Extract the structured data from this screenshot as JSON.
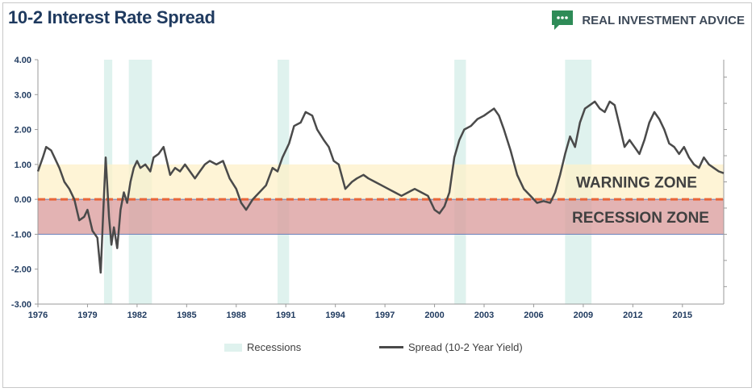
{
  "header": {
    "title": "10-2 Interest Rate Spread"
  },
  "brand": {
    "name": "REAL INVESTMENT ADVICE",
    "icon": "speech-bubble-icon",
    "color": "#2e8b57"
  },
  "zones": {
    "warning_label": "WARNING ZONE",
    "recession_label": "RECESSION ZONE",
    "warning_color": "#fdf0c8",
    "recession_color": "#d99a9a",
    "zero_line_color": "#e8663a"
  },
  "legend": {
    "recessions": "Recessions",
    "spread": "Spread (10-2 Year Yield)"
  },
  "chart_data": {
    "type": "line",
    "title": "10-2 Interest Rate Spread",
    "xlabel": "",
    "ylabel": "",
    "xlim": [
      1976,
      2017.5
    ],
    "ylim": [
      -3,
      4
    ],
    "y_ticks": [
      4,
      3,
      2,
      1,
      0,
      -1,
      -2,
      -3
    ],
    "y_tick_labels": [
      "4.00",
      "3.00",
      "2.00",
      "1.00",
      "0.00",
      "-1.00",
      "-2.00",
      "-3.00"
    ],
    "x_ticks": [
      1976,
      1979,
      1982,
      1985,
      1988,
      1991,
      1994,
      1997,
      2000,
      2003,
      2006,
      2009,
      2012,
      2015
    ],
    "x_tick_labels": [
      "1976",
      "1979",
      "1982",
      "1985",
      "1988",
      "1991",
      "1994",
      "1997",
      "2000",
      "2003",
      "2006",
      "2009",
      "2012",
      "2015"
    ],
    "bands": [
      {
        "name": "warning",
        "from": 0,
        "to": 1
      },
      {
        "name": "recession",
        "from": -1,
        "to": 0
      }
    ],
    "recessions": [
      [
        1980.0,
        1980.5
      ],
      [
        1981.5,
        1982.9
      ],
      [
        1990.5,
        1991.2
      ],
      [
        2001.2,
        2001.9
      ],
      [
        2007.9,
        2009.5
      ]
    ],
    "series": [
      {
        "name": "Spread (10-2 Year Yield)",
        "color": "#4a4a4a",
        "x": [
          1976.0,
          1976.3,
          1976.5,
          1976.8,
          1977.0,
          1977.3,
          1977.6,
          1977.9,
          1978.2,
          1978.5,
          1978.8,
          1979.0,
          1979.3,
          1979.6,
          1979.8,
          1979.95,
          1980.1,
          1980.3,
          1980.45,
          1980.6,
          1980.8,
          1981.0,
          1981.2,
          1981.4,
          1981.6,
          1981.8,
          1982.0,
          1982.2,
          1982.5,
          1982.8,
          1983.0,
          1983.3,
          1983.6,
          1984.0,
          1984.3,
          1984.6,
          1984.9,
          1985.2,
          1985.5,
          1985.8,
          1986.1,
          1986.4,
          1986.8,
          1987.2,
          1987.6,
          1988.0,
          1988.3,
          1988.6,
          1989.0,
          1989.4,
          1989.8,
          1990.2,
          1990.5,
          1990.8,
          1991.2,
          1991.5,
          1991.9,
          1992.2,
          1992.6,
          1992.9,
          1993.3,
          1993.6,
          1993.9,
          1994.2,
          1994.6,
          1995.0,
          1995.3,
          1995.7,
          1996.0,
          1996.4,
          1996.8,
          1997.2,
          1997.6,
          1998.0,
          1998.4,
          1998.8,
          1999.2,
          1999.6,
          2000.0,
          2000.3,
          2000.6,
          2000.9,
          2001.2,
          2001.5,
          2001.8,
          2002.2,
          2002.6,
          2003.0,
          2003.3,
          2003.6,
          2003.9,
          2004.2,
          2004.6,
          2005.0,
          2005.4,
          2005.8,
          2006.2,
          2006.6,
          2007.0,
          2007.3,
          2007.6,
          2007.9,
          2008.2,
          2008.5,
          2008.8,
          2009.1,
          2009.4,
          2009.7,
          2010.0,
          2010.3,
          2010.6,
          2010.9,
          2011.2,
          2011.5,
          2011.8,
          2012.1,
          2012.4,
          2012.7,
          2013.0,
          2013.3,
          2013.6,
          2013.9,
          2014.2,
          2014.5,
          2014.8,
          2015.1,
          2015.4,
          2015.7,
          2016.0,
          2016.3,
          2016.6,
          2016.9,
          2017.2,
          2017.5
        ],
        "values": [
          0.8,
          1.2,
          1.5,
          1.4,
          1.2,
          0.9,
          0.5,
          0.3,
          0.0,
          -0.6,
          -0.5,
          -0.3,
          -0.9,
          -1.1,
          -2.1,
          -0.4,
          1.2,
          -0.5,
          -1.3,
          -0.8,
          -1.4,
          -0.3,
          0.2,
          -0.1,
          0.5,
          0.9,
          1.1,
          0.9,
          1.0,
          0.8,
          1.2,
          1.3,
          1.5,
          0.7,
          0.9,
          0.8,
          1.0,
          0.8,
          0.6,
          0.8,
          1.0,
          1.1,
          1.0,
          1.1,
          0.6,
          0.3,
          -0.1,
          -0.3,
          0.0,
          0.2,
          0.4,
          0.9,
          0.8,
          1.2,
          1.6,
          2.1,
          2.2,
          2.5,
          2.4,
          2.0,
          1.7,
          1.5,
          1.1,
          1.0,
          0.3,
          0.5,
          0.6,
          0.7,
          0.6,
          0.5,
          0.4,
          0.3,
          0.2,
          0.1,
          0.2,
          0.3,
          0.2,
          0.1,
          -0.3,
          -0.4,
          -0.2,
          0.2,
          1.2,
          1.7,
          2.0,
          2.1,
          2.3,
          2.4,
          2.5,
          2.6,
          2.4,
          2.0,
          1.4,
          0.7,
          0.3,
          0.1,
          -0.1,
          -0.05,
          -0.1,
          0.2,
          0.7,
          1.3,
          1.8,
          1.5,
          2.2,
          2.6,
          2.7,
          2.8,
          2.6,
          2.5,
          2.8,
          2.7,
          2.1,
          1.5,
          1.7,
          1.5,
          1.3,
          1.7,
          2.2,
          2.5,
          2.3,
          2.0,
          1.6,
          1.5,
          1.3,
          1.5,
          1.2,
          1.0,
          0.9,
          1.2,
          1.0,
          0.9,
          0.8,
          0.75
        ]
      }
    ]
  }
}
